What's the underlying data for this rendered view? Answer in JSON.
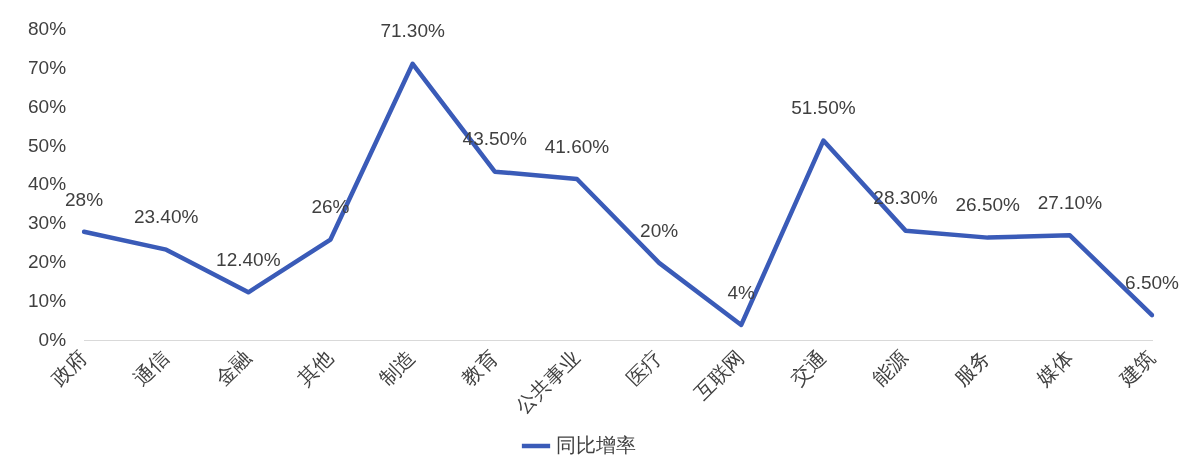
{
  "chart_data": {
    "type": "line",
    "categories": [
      "政府",
      "通信",
      "金融",
      "其他",
      "制造",
      "教育",
      "公共事业",
      "医疗",
      "互联网",
      "交通",
      "能源",
      "服务",
      "媒体",
      "建筑"
    ],
    "series": [
      {
        "name": "同比增率",
        "color": "#3a5bb8",
        "values": [
          28,
          23.4,
          12.4,
          26,
          71.3,
          43.5,
          41.6,
          20,
          4,
          51.5,
          28.3,
          26.5,
          27.1,
          6.5
        ],
        "value_labels": [
          "28%",
          "23.40%",
          "12.40%",
          "26%",
          "71.30%",
          "43.50%",
          "41.60%",
          "20%",
          "4%",
          "51.50%",
          "28.30%",
          "26.50%",
          "27.10%",
          "6.50%"
        ]
      }
    ],
    "ylim": [
      0,
      80
    ],
    "yticks": [
      {
        "value": 0,
        "label": "0%"
      },
      {
        "value": 10,
        "label": "10%"
      },
      {
        "value": 20,
        "label": "20%"
      },
      {
        "value": 30,
        "label": "30%"
      },
      {
        "value": 40,
        "label": "40%"
      },
      {
        "value": 50,
        "label": "50%"
      },
      {
        "value": 60,
        "label": "60%"
      },
      {
        "value": 70,
        "label": "70%"
      },
      {
        "value": 80,
        "label": "80%"
      }
    ],
    "grid": false,
    "legend": "bottom",
    "marker": "none",
    "line_style": "solid"
  }
}
